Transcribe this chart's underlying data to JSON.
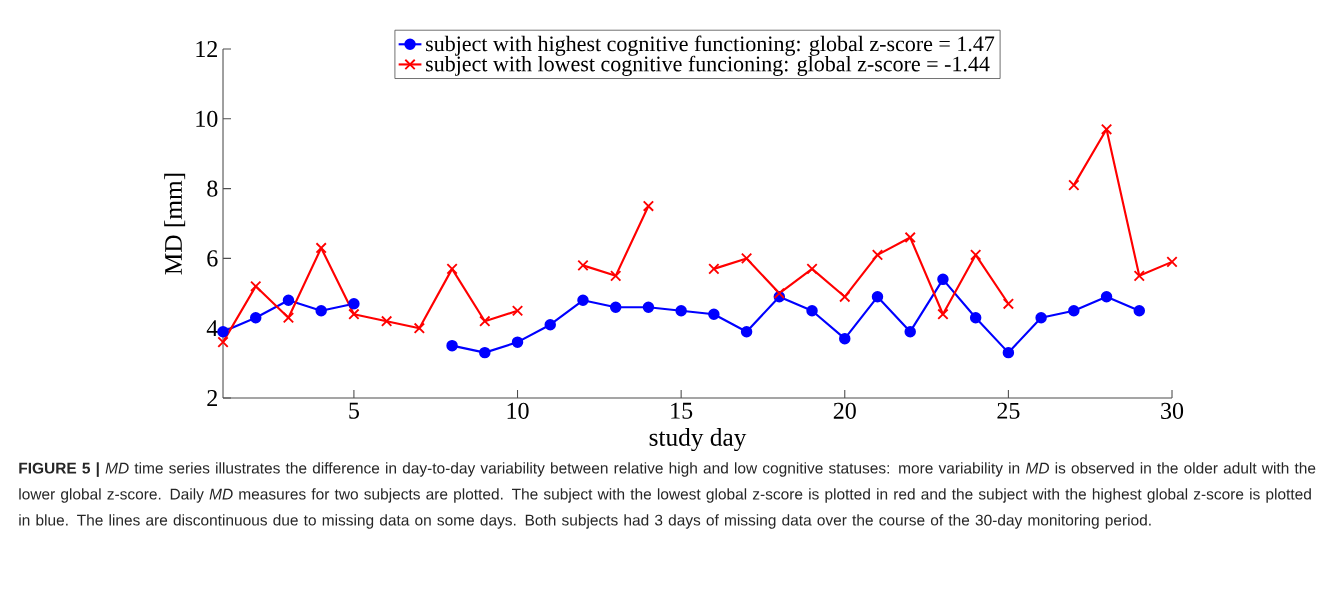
{
  "chart_data": {
    "type": "line",
    "xlabel": "study day",
    "ylabel": "MD [mm]",
    "x": [
      1,
      2,
      3,
      4,
      5,
      6,
      7,
      8,
      9,
      10,
      11,
      12,
      13,
      14,
      15,
      16,
      17,
      18,
      19,
      20,
      21,
      22,
      23,
      24,
      25,
      26,
      27,
      28,
      29,
      30
    ],
    "series": [
      {
        "name": "subject with highest cognitive functioning: global z-score = 1.47",
        "color": "#0000ff",
        "marker": "circle",
        "values": [
          3.9,
          4.3,
          4.8,
          4.5,
          4.7,
          null,
          null,
          3.5,
          3.3,
          3.6,
          4.1,
          4.8,
          4.6,
          4.6,
          4.5,
          4.4,
          3.9,
          4.9,
          4.5,
          3.7,
          4.9,
          3.9,
          5.4,
          4.3,
          3.3,
          4.3,
          4.5,
          4.9,
          4.5,
          null
        ]
      },
      {
        "name": "subject with lowest cognitive funcioning: global z-score = -1.44",
        "color": "#ff0000",
        "marker": "cross",
        "values": [
          3.6,
          5.2,
          4.3,
          6.3,
          4.4,
          4.2,
          4.0,
          5.7,
          4.2,
          4.5,
          null,
          5.8,
          5.5,
          7.5,
          null,
          5.7,
          6.0,
          5.0,
          5.7,
          4.9,
          6.1,
          6.6,
          4.4,
          6.1,
          4.7,
          null,
          8.1,
          9.7,
          5.5,
          5.9
        ]
      }
    ],
    "xlim": [
      1,
      30
    ],
    "xticks": [
      5,
      10,
      15,
      20,
      25,
      30
    ],
    "ylim": [
      2,
      12
    ],
    "yticks": [
      2,
      4,
      6,
      8,
      10,
      12
    ],
    "grid": false,
    "legend": "top",
    "annotations": [
      "**FIGURE 5 |** *MD* time series illustrates the difference in day-to-day variability between relative high and low cognitive statuses: more variability in *MD* is observed in the older adult with the lower global z-score. Daily *MD* measures for two subjects are plotted. The subject with the lowest global z-score is plotted in red and the subject with the highest global z-score is plotted in blue. The lines are discontinuous due to missing data on some days. Both subjects had 3 days of missing data over the course of the 30-day monitoring period."
    ]
  }
}
